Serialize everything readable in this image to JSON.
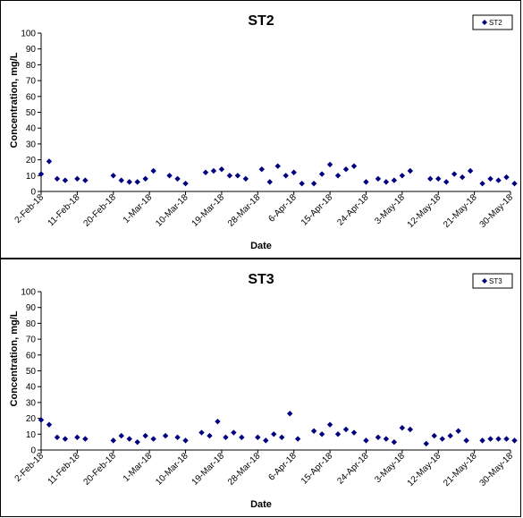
{
  "chart_data": [
    {
      "type": "scatter",
      "title": "ST2",
      "xlabel": "Date",
      "ylabel": "Concentration, mg/L",
      "ylim": [
        0,
        100
      ],
      "yticks": [
        "0",
        "10",
        "20",
        "30",
        "40",
        "50",
        "60",
        "70",
        "80",
        "90",
        "100"
      ],
      "xlim": [
        "2018-02-02",
        "2018-05-30"
      ],
      "xticks": [
        {
          "date": "2018-02-02",
          "label": "2-Feb-18"
        },
        {
          "date": "2018-02-11",
          "label": "11-Feb-18"
        },
        {
          "date": "2018-02-20",
          "label": "20-Feb-18"
        },
        {
          "date": "2018-03-01",
          "label": "1-Mar-18"
        },
        {
          "date": "2018-03-10",
          "label": "10-Mar-18"
        },
        {
          "date": "2018-03-19",
          "label": "19-Mar-18"
        },
        {
          "date": "2018-03-28",
          "label": "28-Mar-18"
        },
        {
          "date": "2018-04-06",
          "label": "6-Apr-18"
        },
        {
          "date": "2018-04-15",
          "label": "15-Apr-18"
        },
        {
          "date": "2018-04-24",
          "label": "24-Apr-18"
        },
        {
          "date": "2018-05-03",
          "label": "3-May-18"
        },
        {
          "date": "2018-05-12",
          "label": "12-May-18"
        },
        {
          "date": "2018-05-21",
          "label": "21-May-18"
        },
        {
          "date": "2018-05-30",
          "label": "30-May-18"
        }
      ],
      "grid": false,
      "legend_position": "top-right",
      "series": [
        {
          "name": "ST2",
          "color": "#000080",
          "marker": "diamond",
          "points": [
            {
              "x": "2018-02-02",
              "y": 11
            },
            {
              "x": "2018-02-04",
              "y": 19
            },
            {
              "x": "2018-02-06",
              "y": 8
            },
            {
              "x": "2018-02-08",
              "y": 7
            },
            {
              "x": "2018-02-11",
              "y": 8
            },
            {
              "x": "2018-02-13",
              "y": 7
            },
            {
              "x": "2018-02-20",
              "y": 10
            },
            {
              "x": "2018-02-22",
              "y": 7
            },
            {
              "x": "2018-02-24",
              "y": 6
            },
            {
              "x": "2018-02-26",
              "y": 6
            },
            {
              "x": "2018-02-28",
              "y": 8
            },
            {
              "x": "2018-03-02",
              "y": 13
            },
            {
              "x": "2018-03-06",
              "y": 10
            },
            {
              "x": "2018-03-08",
              "y": 8
            },
            {
              "x": "2018-03-10",
              "y": 5
            },
            {
              "x": "2018-03-15",
              "y": 12
            },
            {
              "x": "2018-03-17",
              "y": 13
            },
            {
              "x": "2018-03-19",
              "y": 14
            },
            {
              "x": "2018-03-21",
              "y": 10
            },
            {
              "x": "2018-03-23",
              "y": 10
            },
            {
              "x": "2018-03-25",
              "y": 8
            },
            {
              "x": "2018-03-29",
              "y": 14
            },
            {
              "x": "2018-03-31",
              "y": 6
            },
            {
              "x": "2018-04-02",
              "y": 16
            },
            {
              "x": "2018-04-04",
              "y": 10
            },
            {
              "x": "2018-04-06",
              "y": 12
            },
            {
              "x": "2018-04-08",
              "y": 5
            },
            {
              "x": "2018-04-11",
              "y": 5
            },
            {
              "x": "2018-04-13",
              "y": 11
            },
            {
              "x": "2018-04-15",
              "y": 17
            },
            {
              "x": "2018-04-17",
              "y": 10
            },
            {
              "x": "2018-04-19",
              "y": 14
            },
            {
              "x": "2018-04-21",
              "y": 16
            },
            {
              "x": "2018-04-24",
              "y": 6
            },
            {
              "x": "2018-04-27",
              "y": 8
            },
            {
              "x": "2018-04-29",
              "y": 6
            },
            {
              "x": "2018-05-01",
              "y": 7
            },
            {
              "x": "2018-05-03",
              "y": 10
            },
            {
              "x": "2018-05-05",
              "y": 13
            },
            {
              "x": "2018-05-10",
              "y": 8
            },
            {
              "x": "2018-05-12",
              "y": 8
            },
            {
              "x": "2018-05-14",
              "y": 6
            },
            {
              "x": "2018-05-16",
              "y": 11
            },
            {
              "x": "2018-05-18",
              "y": 9
            },
            {
              "x": "2018-05-20",
              "y": 13
            },
            {
              "x": "2018-05-23",
              "y": 5
            },
            {
              "x": "2018-05-25",
              "y": 8
            },
            {
              "x": "2018-05-27",
              "y": 7
            },
            {
              "x": "2018-05-29",
              "y": 9
            },
            {
              "x": "2018-05-31",
              "y": 5
            }
          ]
        }
      ]
    },
    {
      "type": "scatter",
      "title": "ST3",
      "xlabel": "Date",
      "ylabel": "Concentration, mg/L",
      "ylim": [
        0,
        100
      ],
      "yticks": [
        "0",
        "10",
        "20",
        "30",
        "40",
        "50",
        "60",
        "70",
        "80",
        "90",
        "100"
      ],
      "xlim": [
        "2018-02-02",
        "2018-05-30"
      ],
      "xticks": [
        {
          "date": "2018-02-02",
          "label": "2-Feb-18"
        },
        {
          "date": "2018-02-11",
          "label": "11-Feb-18"
        },
        {
          "date": "2018-02-20",
          "label": "20-Feb-18"
        },
        {
          "date": "2018-03-01",
          "label": "1-Mar-18"
        },
        {
          "date": "2018-03-10",
          "label": "10-Mar-18"
        },
        {
          "date": "2018-03-19",
          "label": "19-Mar-18"
        },
        {
          "date": "2018-03-28",
          "label": "28-Mar-18"
        },
        {
          "date": "2018-04-06",
          "label": "6-Apr-18"
        },
        {
          "date": "2018-04-15",
          "label": "15-Apr-18"
        },
        {
          "date": "2018-04-24",
          "label": "24-Apr-18"
        },
        {
          "date": "2018-05-03",
          "label": "3-May-18"
        },
        {
          "date": "2018-05-12",
          "label": "12-May-18"
        },
        {
          "date": "2018-05-21",
          "label": "21-May-18"
        },
        {
          "date": "2018-05-30",
          "label": "30-May-18"
        }
      ],
      "grid": false,
      "legend_position": "top-right",
      "series": [
        {
          "name": "ST3",
          "color": "#000080",
          "marker": "diamond",
          "points": [
            {
              "x": "2018-02-02",
              "y": 19
            },
            {
              "x": "2018-02-04",
              "y": 16
            },
            {
              "x": "2018-02-06",
              "y": 8
            },
            {
              "x": "2018-02-08",
              "y": 7
            },
            {
              "x": "2018-02-11",
              "y": 8
            },
            {
              "x": "2018-02-13",
              "y": 7
            },
            {
              "x": "2018-02-20",
              "y": 6
            },
            {
              "x": "2018-02-22",
              "y": 9
            },
            {
              "x": "2018-02-24",
              "y": 7
            },
            {
              "x": "2018-02-26",
              "y": 5
            },
            {
              "x": "2018-02-28",
              "y": 9
            },
            {
              "x": "2018-03-02",
              "y": 7
            },
            {
              "x": "2018-03-05",
              "y": 9
            },
            {
              "x": "2018-03-08",
              "y": 8
            },
            {
              "x": "2018-03-10",
              "y": 6
            },
            {
              "x": "2018-03-14",
              "y": 11
            },
            {
              "x": "2018-03-16",
              "y": 9
            },
            {
              "x": "2018-03-18",
              "y": 18
            },
            {
              "x": "2018-03-20",
              "y": 8
            },
            {
              "x": "2018-03-22",
              "y": 11
            },
            {
              "x": "2018-03-24",
              "y": 8
            },
            {
              "x": "2018-03-28",
              "y": 8
            },
            {
              "x": "2018-03-30",
              "y": 6
            },
            {
              "x": "2018-04-01",
              "y": 10
            },
            {
              "x": "2018-04-03",
              "y": 8
            },
            {
              "x": "2018-04-05",
              "y": 23
            },
            {
              "x": "2018-04-07",
              "y": 7
            },
            {
              "x": "2018-04-11",
              "y": 12
            },
            {
              "x": "2018-04-13",
              "y": 10
            },
            {
              "x": "2018-04-15",
              "y": 16
            },
            {
              "x": "2018-04-17",
              "y": 10
            },
            {
              "x": "2018-04-19",
              "y": 13
            },
            {
              "x": "2018-04-21",
              "y": 11
            },
            {
              "x": "2018-04-24",
              "y": 6
            },
            {
              "x": "2018-04-27",
              "y": 8
            },
            {
              "x": "2018-04-29",
              "y": 7
            },
            {
              "x": "2018-05-01",
              "y": 5
            },
            {
              "x": "2018-05-03",
              "y": 14
            },
            {
              "x": "2018-05-05",
              "y": 13
            },
            {
              "x": "2018-05-09",
              "y": 4
            },
            {
              "x": "2018-05-11",
              "y": 9
            },
            {
              "x": "2018-05-13",
              "y": 7
            },
            {
              "x": "2018-05-15",
              "y": 9
            },
            {
              "x": "2018-05-17",
              "y": 12
            },
            {
              "x": "2018-05-19",
              "y": 6
            },
            {
              "x": "2018-05-23",
              "y": 6
            },
            {
              "x": "2018-05-25",
              "y": 7
            },
            {
              "x": "2018-05-27",
              "y": 7
            },
            {
              "x": "2018-05-29",
              "y": 7
            },
            {
              "x": "2018-05-31",
              "y": 6
            }
          ]
        }
      ]
    }
  ]
}
